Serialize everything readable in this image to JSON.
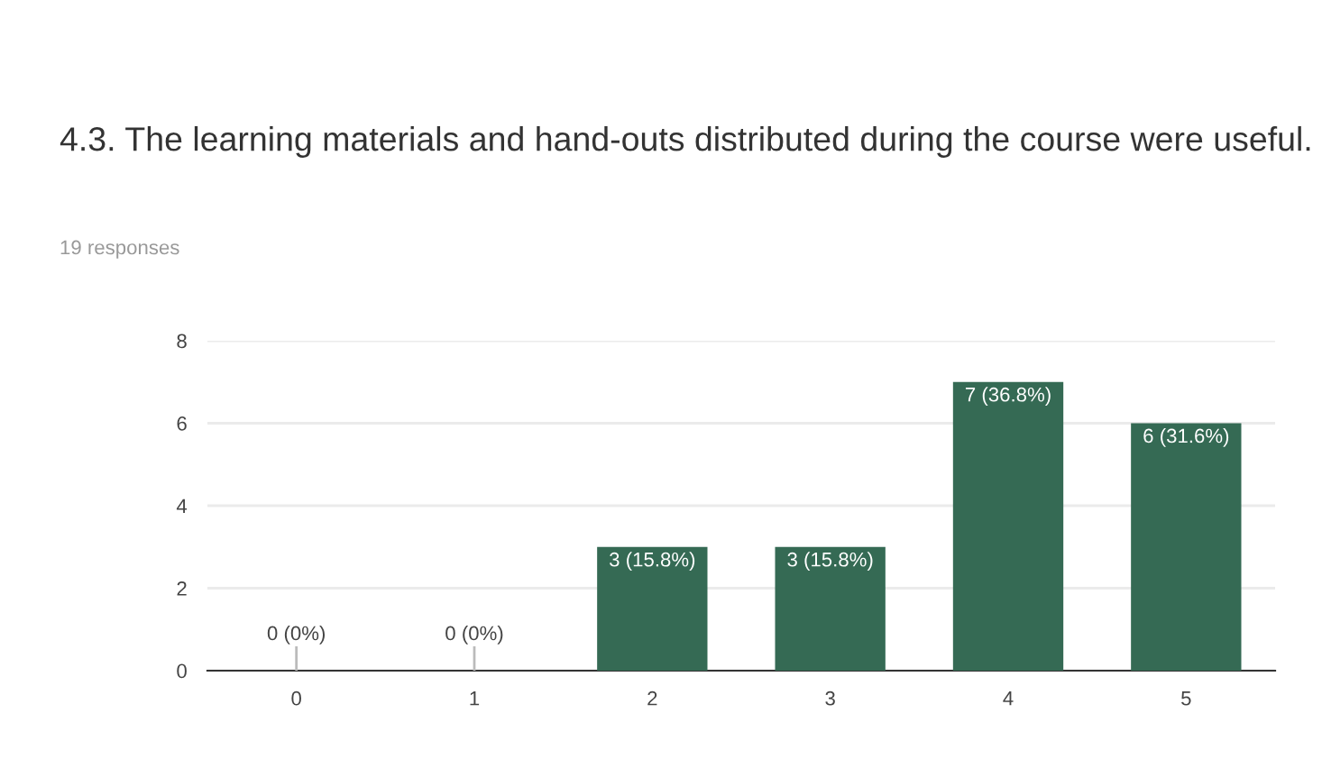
{
  "chart_data": {
    "type": "bar",
    "title": "4.3. The learning materials and hand-outs distributed during the course were useful.",
    "subtitle": "19 responses",
    "categories": [
      "0",
      "1",
      "2",
      "3",
      "4",
      "5"
    ],
    "values": [
      0,
      0,
      3,
      3,
      7,
      6
    ],
    "value_labels": [
      "0 (0%)",
      "0 (0%)",
      "3 (15.8%)",
      "3 (15.8%)",
      "7 (36.8%)",
      "6 (31.6%)"
    ],
    "color": "#356a54",
    "ylim": [
      0,
      8
    ],
    "yticks": [
      0,
      2,
      4,
      6,
      8
    ],
    "grid": "y"
  }
}
